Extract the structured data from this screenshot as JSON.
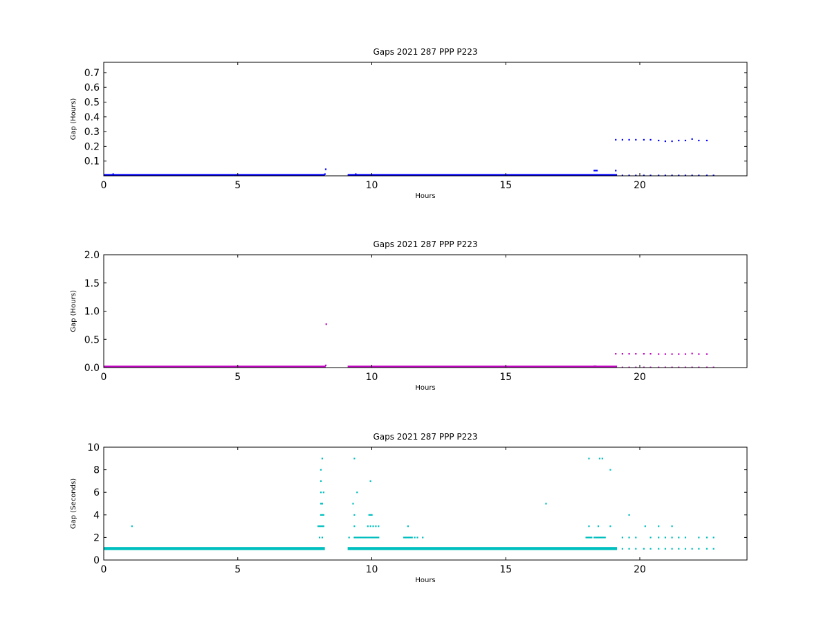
{
  "chart_data": [
    {
      "type": "scatter",
      "title": "Gaps 2021 287 PPP  P223",
      "xlabel": "Hours",
      "ylabel": "Gap (Hours)",
      "xlim": [
        0,
        24
      ],
      "ylim": [
        0,
        0.77
      ],
      "xticks": [
        "0",
        "5",
        "10",
        "15",
        "20"
      ],
      "yticks": [
        "0.1",
        "0.2",
        "0.3",
        "0.4",
        "0.5",
        "0.6",
        "0.7"
      ],
      "color": "#0000ff",
      "series": [
        {
          "segments": [
            [
              0.0,
              8.25,
              0.0003
            ],
            [
              9.1,
              19.15,
              0.0003
            ]
          ],
          "points": [
            [
              0.35,
              0.012
            ],
            [
              8.2,
              0.006
            ],
            [
              8.25,
              0.012
            ],
            [
              8.28,
              0.045
            ],
            [
              9.4,
              0.012
            ],
            [
              18.3,
              0.036
            ],
            [
              18.35,
              0.036
            ],
            [
              18.4,
              0.036
            ],
            [
              19.1,
              0.036
            ],
            [
              19.1,
              0.245
            ],
            [
              19.35,
              0.245
            ],
            [
              19.6,
              0.245
            ],
            [
              19.85,
              0.245
            ],
            [
              20.15,
              0.245
            ],
            [
              20.4,
              0.245
            ],
            [
              20.7,
              0.24
            ],
            [
              20.95,
              0.235
            ],
            [
              21.2,
              0.235
            ],
            [
              21.45,
              0.24
            ],
            [
              21.7,
              0.24
            ],
            [
              21.95,
              0.25
            ],
            [
              22.2,
              0.24
            ],
            [
              22.5,
              0.24
            ],
            [
              19.35,
              0.003
            ],
            [
              19.6,
              0.003
            ],
            [
              19.85,
              0.003
            ],
            [
              20.15,
              0.003
            ],
            [
              20.4,
              0.003
            ],
            [
              20.7,
              0.003
            ],
            [
              20.95,
              0.003
            ],
            [
              21.2,
              0.003
            ],
            [
              21.45,
              0.003
            ],
            [
              21.7,
              0.003
            ],
            [
              21.95,
              0.003
            ],
            [
              22.2,
              0.003
            ],
            [
              22.5,
              0.003
            ],
            [
              22.75,
              0.003
            ]
          ]
        }
      ]
    },
    {
      "type": "scatter",
      "title": "Gaps 2021 287 PPP  P223",
      "xlabel": "Hours",
      "ylabel": "Gap (Hours)",
      "xlim": [
        0,
        24
      ],
      "ylim": [
        0,
        2.0
      ],
      "xticks": [
        "0",
        "5",
        "10",
        "15",
        "20"
      ],
      "yticks": [
        "0.0",
        "0.5",
        "1.0",
        "1.5",
        "2.0"
      ],
      "color": "#bf00bf",
      "series": [
        {
          "segments": [
            [
              0.0,
              8.25,
              0.003
            ],
            [
              9.1,
              19.15,
              0.003
            ]
          ],
          "points": [
            [
              8.3,
              0.77
            ],
            [
              8.25,
              0.02
            ],
            [
              8.28,
              0.04
            ],
            [
              18.3,
              0.025
            ],
            [
              18.35,
              0.025
            ],
            [
              19.1,
              0.245
            ],
            [
              19.35,
              0.245
            ],
            [
              19.6,
              0.245
            ],
            [
              19.85,
              0.245
            ],
            [
              20.15,
              0.245
            ],
            [
              20.4,
              0.245
            ],
            [
              20.7,
              0.24
            ],
            [
              20.95,
              0.24
            ],
            [
              21.2,
              0.24
            ],
            [
              21.45,
              0.24
            ],
            [
              21.7,
              0.24
            ],
            [
              21.95,
              0.25
            ],
            [
              22.2,
              0.24
            ],
            [
              22.5,
              0.24
            ],
            [
              19.35,
              0.005
            ],
            [
              19.6,
              0.005
            ],
            [
              19.85,
              0.005
            ],
            [
              20.15,
              0.005
            ],
            [
              20.4,
              0.005
            ],
            [
              20.7,
              0.005
            ],
            [
              20.95,
              0.005
            ],
            [
              21.2,
              0.005
            ],
            [
              21.45,
              0.005
            ],
            [
              21.7,
              0.005
            ],
            [
              21.95,
              0.005
            ],
            [
              22.2,
              0.005
            ],
            [
              22.5,
              0.005
            ],
            [
              22.75,
              0.005
            ]
          ]
        }
      ]
    },
    {
      "type": "scatter",
      "title": "Gaps 2021 287 PPP  P223",
      "xlabel": "Hours",
      "ylabel": "Gap (Seconds)",
      "xlim": [
        0,
        24
      ],
      "ylim": [
        0,
        10
      ],
      "xticks": [
        "0",
        "5",
        "10",
        "15",
        "20"
      ],
      "yticks": [
        "0",
        "2",
        "4",
        "6",
        "8",
        "10"
      ],
      "color": "#00bfbf",
      "series": [
        {
          "segments": [
            [
              0.0,
              8.25,
              1.0
            ],
            [
              9.1,
              19.15,
              1.0
            ]
          ],
          "points": [
            [
              1.05,
              3
            ],
            [
              8.0,
              3
            ],
            [
              8.05,
              3
            ],
            [
              8.1,
              3
            ],
            [
              8.15,
              3
            ],
            [
              8.2,
              3
            ],
            [
              8.05,
              2
            ],
            [
              8.15,
              2
            ],
            [
              8.1,
              4
            ],
            [
              8.15,
              4
            ],
            [
              8.2,
              4
            ],
            [
              8.1,
              5
            ],
            [
              8.15,
              5
            ],
            [
              8.1,
              6
            ],
            [
              8.2,
              6
            ],
            [
              8.1,
              7
            ],
            [
              8.1,
              8
            ],
            [
              8.15,
              9
            ],
            [
              9.15,
              2
            ],
            [
              9.35,
              2
            ],
            [
              9.4,
              2
            ],
            [
              9.45,
              2
            ],
            [
              9.5,
              2
            ],
            [
              9.55,
              2
            ],
            [
              9.6,
              2
            ],
            [
              9.65,
              2
            ],
            [
              9.7,
              2
            ],
            [
              9.75,
              2
            ],
            [
              9.8,
              2
            ],
            [
              9.85,
              2
            ],
            [
              9.9,
              2
            ],
            [
              9.95,
              2
            ],
            [
              10.0,
              2
            ],
            [
              10.05,
              2
            ],
            [
              10.1,
              2
            ],
            [
              10.15,
              2
            ],
            [
              10.2,
              2
            ],
            [
              10.25,
              2
            ],
            [
              9.35,
              3
            ],
            [
              9.85,
              3
            ],
            [
              9.95,
              3
            ],
            [
              10.05,
              3
            ],
            [
              10.15,
              3
            ],
            [
              10.25,
              3
            ],
            [
              9.35,
              4
            ],
            [
              9.9,
              4
            ],
            [
              9.95,
              4
            ],
            [
              10.0,
              4
            ],
            [
              9.3,
              5
            ],
            [
              9.45,
              6
            ],
            [
              9.95,
              7
            ],
            [
              9.35,
              9
            ],
            [
              11.2,
              2
            ],
            [
              11.25,
              2
            ],
            [
              11.3,
              2
            ],
            [
              11.35,
              2
            ],
            [
              11.4,
              2
            ],
            [
              11.45,
              2
            ],
            [
              11.5,
              2
            ],
            [
              11.6,
              2
            ],
            [
              11.7,
              2
            ],
            [
              11.9,
              2
            ],
            [
              11.35,
              3
            ],
            [
              16.5,
              5
            ],
            [
              18.0,
              2
            ],
            [
              18.05,
              2
            ],
            [
              18.1,
              2
            ],
            [
              18.15,
              2
            ],
            [
              18.2,
              2
            ],
            [
              18.3,
              2
            ],
            [
              18.35,
              2
            ],
            [
              18.4,
              2
            ],
            [
              18.45,
              2
            ],
            [
              18.5,
              2
            ],
            [
              18.55,
              2
            ],
            [
              18.6,
              2
            ],
            [
              18.65,
              2
            ],
            [
              18.7,
              2
            ],
            [
              18.1,
              3
            ],
            [
              18.45,
              3
            ],
            [
              18.9,
              3
            ],
            [
              18.1,
              9
            ],
            [
              18.5,
              9
            ],
            [
              18.6,
              9
            ],
            [
              18.9,
              8
            ],
            [
              19.35,
              2
            ],
            [
              19.6,
              2
            ],
            [
              19.85,
              2
            ],
            [
              20.4,
              2
            ],
            [
              20.7,
              2
            ],
            [
              20.95,
              2
            ],
            [
              21.2,
              2
            ],
            [
              21.45,
              2
            ],
            [
              21.7,
              2
            ],
            [
              22.2,
              2
            ],
            [
              22.5,
              2
            ],
            [
              22.75,
              2
            ],
            [
              19.6,
              4
            ],
            [
              20.2,
              3
            ],
            [
              20.7,
              3
            ],
            [
              21.2,
              3
            ],
            [
              19.35,
              1
            ],
            [
              19.6,
              1
            ],
            [
              19.85,
              1
            ],
            [
              20.15,
              1
            ],
            [
              20.4,
              1
            ],
            [
              20.7,
              1
            ],
            [
              20.95,
              1
            ],
            [
              21.2,
              1
            ],
            [
              21.45,
              1
            ],
            [
              21.7,
              1
            ],
            [
              21.95,
              1
            ],
            [
              22.2,
              1
            ],
            [
              22.5,
              1
            ],
            [
              22.75,
              1
            ]
          ]
        }
      ]
    }
  ]
}
